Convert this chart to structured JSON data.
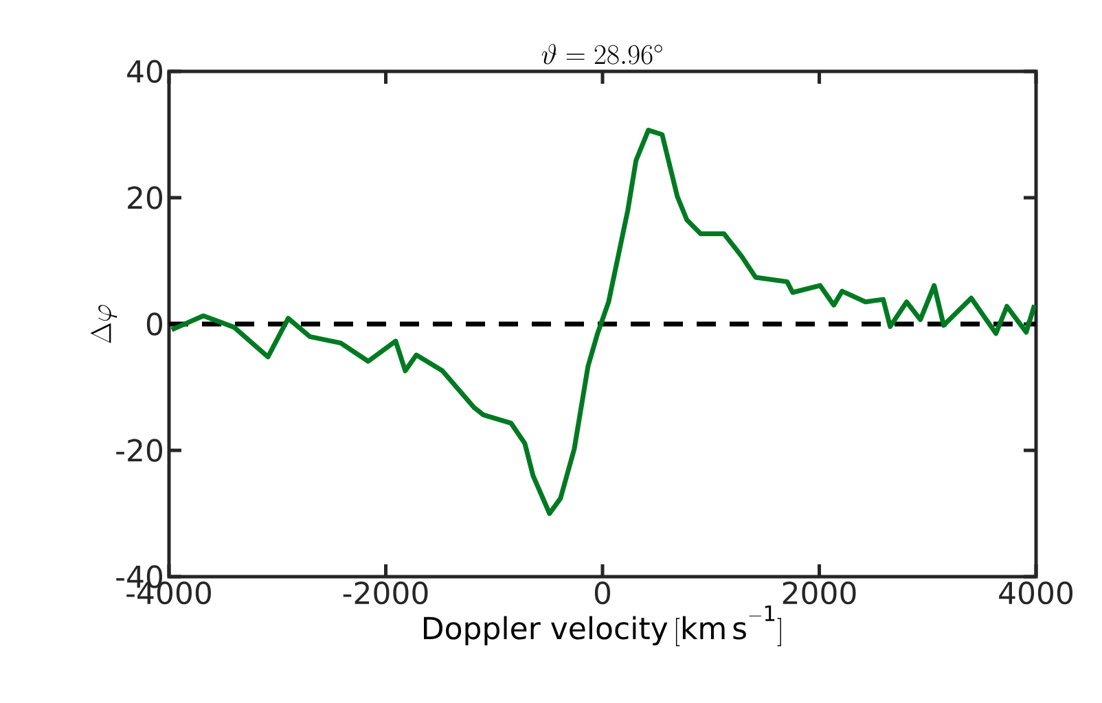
{
  "chart_data": {
    "type": "line",
    "title": "\\vartheta = 28.96^{\\circ}",
    "xlabel": "\\mathrm{Doppler\\ velocity}\\,[\\mathrm{km\\,s^{-1}}]",
    "ylabel": "\\Delta\\varphi",
    "x": [
      -3975,
      -3683,
      -3400,
      -3087,
      -2900,
      -2700,
      -2416,
      -2162,
      -1909,
      -1820,
      -1718,
      -1478,
      -1186,
      -1098,
      -844,
      -717,
      -641,
      -489,
      -388,
      -261,
      -134,
      -46,
      56,
      233,
      309,
      423,
      550,
      690,
      778,
      905,
      1120,
      1285,
      1412,
      1703,
      1754,
      2008,
      2134,
      2210,
      2426,
      2590,
      2654,
      2806,
      2933,
      3060,
      3148,
      3402,
      3630,
      3731,
      3909,
      3985
    ],
    "series": [
      {
        "color": "#007a22",
        "values": [
          -0.9,
          1.3,
          -0.5,
          -5.2,
          0.9,
          -2,
          -3,
          -5.9,
          -2.7,
          -7.4,
          -4.9,
          -7.4,
          -13.2,
          -14.4,
          -15.7,
          -18.9,
          -24,
          -30,
          -27.6,
          -19.8,
          -6.7,
          -1.5,
          3.5,
          18,
          25.9,
          30.7,
          30,
          20.2,
          16.5,
          14.3,
          14.3,
          10.7,
          7.4,
          6.7,
          5,
          6.1,
          3,
          5.2,
          3.5,
          3.9,
          -0.4,
          3.5,
          0.7,
          6.1,
          -0.2,
          4.1,
          -1.5,
          2.8,
          -1.3,
          3
        ]
      }
    ],
    "xlim": [
      -4000,
      4000
    ],
    "ylim": [
      -40,
      40
    ],
    "xticks": [
      -4000,
      -2000,
      0,
      2000,
      4000
    ],
    "yticks": [
      -40,
      -20,
      0,
      20,
      40
    ],
    "ref_lines": [
      {
        "axis": "y",
        "value": 0,
        "color": "#000000",
        "line_style": "dashed"
      }
    ]
  }
}
